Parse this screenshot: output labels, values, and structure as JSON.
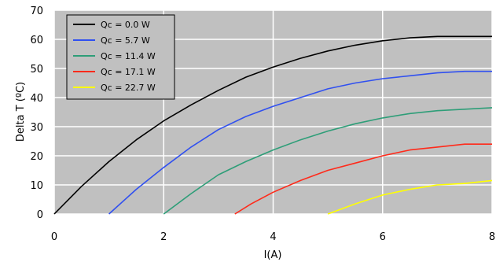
{
  "chart_data": {
    "type": "line",
    "title": "",
    "xlabel": "I(A)",
    "ylabel": "Delta T (ºC)",
    "xlim": [
      0,
      8
    ],
    "ylim": [
      0,
      70
    ],
    "xticks": [
      "0",
      "2",
      "4",
      "6",
      "8"
    ],
    "yticks": [
      "0",
      "10",
      "20",
      "30",
      "40",
      "50",
      "60",
      "70"
    ],
    "grid": true,
    "legend_position": "top-left",
    "plot_background": "#c0c0c0",
    "grid_color": "#ffffff",
    "series": [
      {
        "name": "Qc = 0.0 W",
        "color": "#000000",
        "x": [
          0,
          0.5,
          1,
          1.5,
          2,
          2.5,
          3,
          3.5,
          4,
          4.5,
          5,
          5.5,
          6,
          6.5,
          7,
          7.5,
          8
        ],
        "y": [
          0,
          9.5,
          18,
          25.5,
          32,
          37.5,
          42.5,
          47,
          50.5,
          53.5,
          56,
          58,
          59.5,
          60.5,
          61,
          61,
          61
        ]
      },
      {
        "name": "Qc = 5.7 W",
        "color": "#3050f0",
        "x": [
          1,
          1.5,
          2,
          2.5,
          3,
          3.5,
          4,
          4.5,
          5,
          5.5,
          6,
          6.5,
          7,
          7.5,
          8
        ],
        "y": [
          0,
          8.5,
          16,
          23,
          29,
          33.5,
          37,
          40,
          43,
          45,
          46.5,
          47.5,
          48.5,
          49,
          49
        ]
      },
      {
        "name": "Qc = 11.4 W",
        "color": "#2e9e78",
        "x": [
          2,
          2.5,
          3,
          3.5,
          4,
          4.5,
          5,
          5.5,
          6,
          6.5,
          7,
          7.5,
          8
        ],
        "y": [
          0,
          7,
          13.5,
          18,
          22,
          25.5,
          28.5,
          31,
          33,
          34.5,
          35.5,
          36,
          36.5
        ]
      },
      {
        "name": "Qc = 17.1 W",
        "color": "#ff2a1a",
        "x": [
          3.3,
          3.6,
          4,
          4.5,
          5,
          5.5,
          6,
          6.5,
          7,
          7.5,
          8
        ],
        "y": [
          0,
          3.5,
          7.5,
          11.5,
          15,
          17.5,
          20,
          22,
          23,
          24,
          24
        ]
      },
      {
        "name": "Qc = 22.7 W",
        "color": "#ffff00",
        "x": [
          5,
          5.5,
          6,
          6.5,
          7,
          7.5,
          8
        ],
        "y": [
          0,
          3.5,
          6.5,
          8.5,
          10,
          10.5,
          11.5
        ]
      }
    ]
  }
}
